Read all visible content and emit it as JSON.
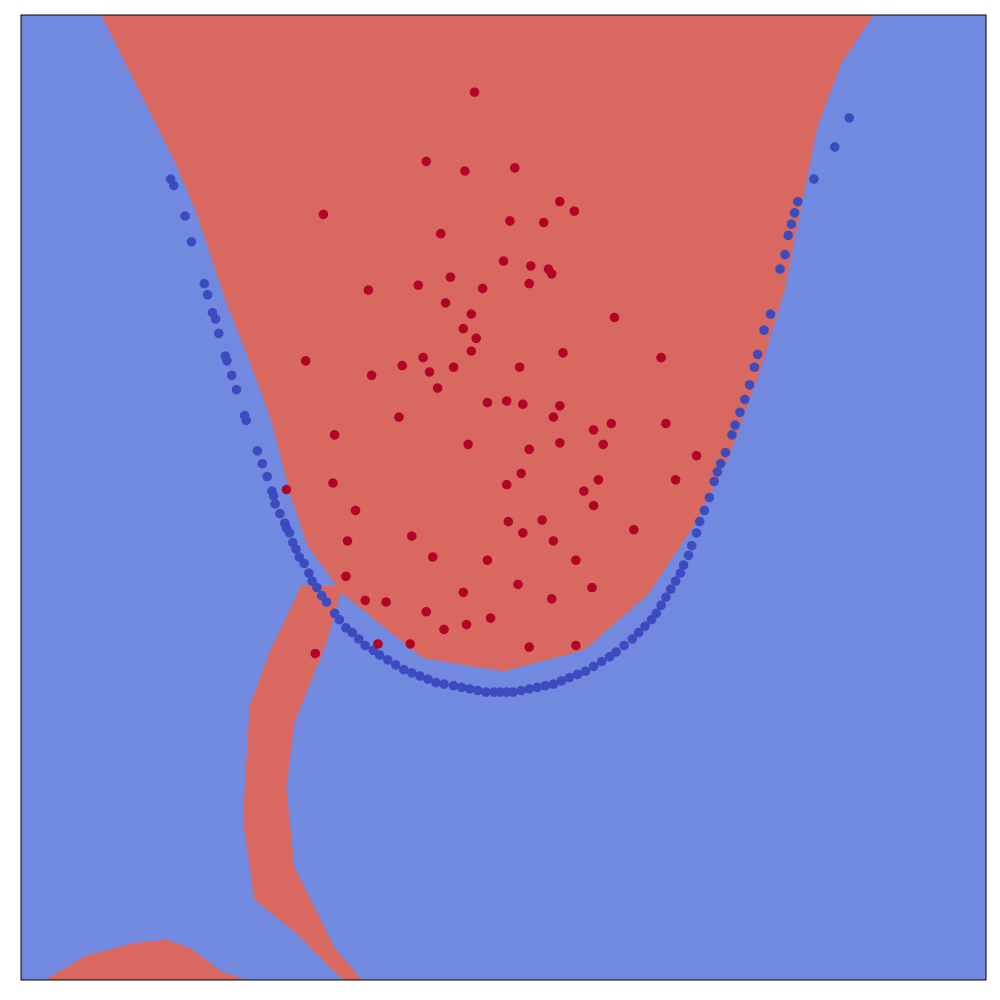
{
  "chart_data": {
    "type": "scatter",
    "title": "",
    "xlabel": "",
    "ylabel": "",
    "xlim": [
      -3.0,
      3.0
    ],
    "ylim": [
      -3.0,
      3.0
    ],
    "grid": false,
    "ticks": false,
    "colors": {
      "region_class_0": "#7289e0",
      "region_class_1": "#d86860",
      "class_0": "#3b4cc0",
      "class_1": "#b40426",
      "frame": "#000000"
    },
    "decision_regions": [
      {
        "class": 1,
        "boundary": [
          [
            -2.5,
            3
          ],
          [
            -2.35,
            2.7
          ],
          [
            -2.2,
            2.4
          ],
          [
            -2.05,
            2.1
          ],
          [
            -1.92,
            1.8
          ],
          [
            -1.82,
            1.5
          ],
          [
            -1.72,
            1.2
          ],
          [
            -1.6,
            0.9
          ],
          [
            -1.45,
            0.5
          ],
          [
            -1.32,
            0.0
          ],
          [
            -1.22,
            -0.3
          ],
          [
            -1.0,
            -0.6
          ],
          [
            -0.5,
            -1.0
          ],
          [
            0.0,
            -1.08
          ],
          [
            0.5,
            -0.95
          ],
          [
            0.9,
            -0.6
          ],
          [
            1.2,
            -0.15
          ],
          [
            1.4,
            0.25
          ],
          [
            1.6,
            0.8
          ],
          [
            1.75,
            1.3
          ],
          [
            1.85,
            1.8
          ],
          [
            1.95,
            2.3
          ],
          [
            2.1,
            2.7
          ],
          [
            2.3,
            3.0
          ]
        ]
      },
      {
        "class": 1,
        "boundary": [
          [
            -1.26,
            -0.55
          ],
          [
            -1.0,
            -0.55
          ],
          [
            -1.1,
            -0.9
          ],
          [
            -1.3,
            -1.4
          ],
          [
            -1.35,
            -1.8
          ],
          [
            -1.3,
            -2.3
          ],
          [
            -1.05,
            -2.8
          ],
          [
            -0.88,
            -3.0
          ],
          [
            -1.0,
            -3.0
          ],
          [
            -1.3,
            -2.7
          ],
          [
            -1.55,
            -2.5
          ],
          [
            -1.62,
            -2.0
          ],
          [
            -1.58,
            -1.3
          ],
          [
            -1.45,
            -0.95
          ],
          [
            -1.33,
            -0.7
          ]
        ]
      },
      {
        "class": 1,
        "boundary": [
          [
            -2.85,
            -3.0
          ],
          [
            -2.6,
            -2.85
          ],
          [
            -2.3,
            -2.77
          ],
          [
            -2.1,
            -2.75
          ],
          [
            -1.95,
            -2.8
          ],
          [
            -1.75,
            -2.95
          ],
          [
            -1.6,
            -3.0
          ]
        ]
      }
    ],
    "series": [
      {
        "class": 0,
        "points": [
          [
            -2.07,
            1.98
          ],
          [
            -2.05,
            1.94
          ],
          [
            -1.98,
            1.75
          ],
          [
            -1.94,
            1.59
          ],
          [
            -1.86,
            1.33
          ],
          [
            -1.84,
            1.26
          ],
          [
            -1.81,
            1.15
          ],
          [
            -1.79,
            1.11
          ],
          [
            -1.77,
            1.02
          ],
          [
            -1.73,
            0.88
          ],
          [
            -1.72,
            0.85
          ],
          [
            -1.69,
            0.76
          ],
          [
            -1.66,
            0.67
          ],
          [
            -1.61,
            0.51
          ],
          [
            -1.6,
            0.48
          ],
          [
            -1.53,
            0.29
          ],
          [
            -1.5,
            0.21
          ],
          [
            -1.47,
            0.13
          ],
          [
            -1.44,
            0.04
          ],
          [
            -1.43,
            0.01
          ],
          [
            -1.42,
            -0.04
          ],
          [
            -1.39,
            -0.1
          ],
          [
            -1.36,
            -0.16
          ],
          [
            -1.35,
            -0.19
          ],
          [
            -1.33,
            -0.22
          ],
          [
            -1.31,
            -0.28
          ],
          [
            -1.29,
            -0.32
          ],
          [
            -1.27,
            -0.37
          ],
          [
            -1.24,
            -0.41
          ],
          [
            -1.21,
            -0.47
          ],
          [
            -1.19,
            -0.52
          ],
          [
            -1.16,
            -0.56
          ],
          [
            -1.13,
            -0.61
          ],
          [
            -1.1,
            -0.65
          ],
          [
            -1.05,
            -0.72
          ],
          [
            -1.02,
            -0.76
          ],
          [
            -0.98,
            -0.81
          ],
          [
            -0.94,
            -0.84
          ],
          [
            -0.9,
            -0.88
          ],
          [
            -0.86,
            -0.92
          ],
          [
            -0.81,
            -0.95
          ],
          [
            -0.77,
            -0.98
          ],
          [
            -0.72,
            -1.01
          ],
          [
            -0.67,
            -1.04
          ],
          [
            -0.62,
            -1.07
          ],
          [
            -0.57,
            -1.09
          ],
          [
            -0.52,
            -1.11
          ],
          [
            -0.47,
            -1.13
          ],
          [
            -0.42,
            -1.15
          ],
          [
            -0.37,
            -1.16
          ],
          [
            -0.31,
            -1.17
          ],
          [
            -0.26,
            -1.18
          ],
          [
            -0.21,
            -1.19
          ],
          [
            -0.16,
            -1.2
          ],
          [
            -0.11,
            -1.21
          ],
          [
            -0.06,
            -1.21
          ],
          [
            -0.02,
            -1.21
          ],
          [
            0.02,
            -1.21
          ],
          [
            0.06,
            -1.21
          ],
          [
            0.11,
            -1.2
          ],
          [
            0.16,
            -1.19
          ],
          [
            0.21,
            -1.18
          ],
          [
            0.26,
            -1.17
          ],
          [
            0.31,
            -1.16
          ],
          [
            0.36,
            -1.14
          ],
          [
            0.41,
            -1.12
          ],
          [
            0.46,
            -1.1
          ],
          [
            0.51,
            -1.08
          ],
          [
            0.56,
            -1.05
          ],
          [
            0.61,
            -1.02
          ],
          [
            0.66,
            -0.99
          ],
          [
            0.7,
            -0.96
          ],
          [
            0.75,
            -0.92
          ],
          [
            0.8,
            -0.88
          ],
          [
            0.84,
            -0.84
          ],
          [
            0.88,
            -0.8
          ],
          [
            0.92,
            -0.76
          ],
          [
            0.95,
            -0.72
          ],
          [
            0.98,
            -0.67
          ],
          [
            1.01,
            -0.62
          ],
          [
            1.04,
            -0.57
          ],
          [
            1.07,
            -0.52
          ],
          [
            1.1,
            -0.47
          ],
          [
            1.12,
            -0.42
          ],
          [
            1.15,
            -0.36
          ],
          [
            1.17,
            -0.3
          ],
          [
            1.2,
            -0.22
          ],
          [
            1.22,
            -0.15
          ],
          [
            1.25,
            -0.08
          ],
          [
            1.28,
            0.0
          ],
          [
            1.31,
            0.1
          ],
          [
            1.33,
            0.16
          ],
          [
            1.35,
            0.21
          ],
          [
            1.38,
            0.28
          ],
          [
            1.42,
            0.39
          ],
          [
            1.44,
            0.45
          ],
          [
            1.47,
            0.53
          ],
          [
            1.5,
            0.61
          ],
          [
            1.53,
            0.7
          ],
          [
            1.56,
            0.81
          ],
          [
            1.58,
            0.89
          ],
          [
            1.62,
            1.04
          ],
          [
            1.66,
            1.14
          ],
          [
            1.72,
            1.42
          ],
          [
            1.75,
            1.51
          ],
          [
            1.77,
            1.63
          ],
          [
            1.79,
            1.7
          ],
          [
            1.81,
            1.77
          ],
          [
            1.83,
            1.84
          ],
          [
            1.93,
            1.98
          ],
          [
            2.06,
            2.18
          ],
          [
            2.15,
            2.36
          ]
        ]
      },
      {
        "class": 1,
        "points": [
          [
            -0.18,
            2.52
          ],
          [
            -0.48,
            2.09
          ],
          [
            0.07,
            2.05
          ],
          [
            -0.24,
            2.03
          ],
          [
            0.35,
            1.84
          ],
          [
            0.44,
            1.78
          ],
          [
            0.25,
            1.71
          ],
          [
            -0.39,
            1.64
          ],
          [
            0.0,
            1.47
          ],
          [
            0.17,
            1.44
          ],
          [
            0.28,
            1.42
          ],
          [
            0.3,
            1.39
          ],
          [
            -0.33,
            1.37
          ],
          [
            0.16,
            1.33
          ],
          [
            -0.53,
            1.32
          ],
          [
            -0.13,
            1.3
          ],
          [
            -0.36,
            1.21
          ],
          [
            -0.2,
            1.14
          ],
          [
            0.69,
            1.12
          ],
          [
            -0.25,
            1.05
          ],
          [
            -0.17,
            0.99
          ],
          [
            -0.2,
            0.91
          ],
          [
            -0.5,
            0.87
          ],
          [
            0.37,
            0.9
          ],
          [
            0.1,
            0.81
          ],
          [
            -0.31,
            0.81
          ],
          [
            -0.46,
            0.78
          ],
          [
            0.02,
            0.6
          ],
          [
            -0.1,
            0.59
          ],
          [
            -0.41,
            0.68
          ],
          [
            0.12,
            0.58
          ],
          [
            0.35,
            0.57
          ],
          [
            0.31,
            0.5
          ],
          [
            0.67,
            0.46
          ],
          [
            0.56,
            0.42
          ],
          [
            0.35,
            0.34
          ],
          [
            0.16,
            0.3
          ],
          [
            -0.65,
            0.5
          ],
          [
            0.11,
            0.15
          ],
          [
            0.59,
            0.11
          ],
          [
            0.02,
            0.08
          ],
          [
            0.5,
            0.04
          ],
          [
            0.56,
            -0.05
          ],
          [
            0.24,
            -0.14
          ],
          [
            0.03,
            -0.15
          ],
          [
            0.12,
            -0.22
          ],
          [
            0.31,
            -0.27
          ],
          [
            -0.44,
            -0.37
          ],
          [
            -0.1,
            -0.39
          ],
          [
            0.45,
            -0.39
          ],
          [
            -0.25,
            -0.59
          ],
          [
            0.09,
            -0.54
          ],
          [
            0.55,
            -0.56
          ],
          [
            -0.23,
            -0.79
          ],
          [
            0.3,
            -0.63
          ],
          [
            0.16,
            -0.93
          ],
          [
            -0.48,
            -0.71
          ],
          [
            -0.58,
            -0.91
          ],
          [
            -0.37,
            -0.82
          ],
          [
            -0.73,
            -0.65
          ],
          [
            -0.86,
            -0.64
          ],
          [
            -0.78,
            -0.91
          ],
          [
            -0.92,
            -0.08
          ],
          [
            -0.97,
            -0.27
          ],
          [
            -0.98,
            -0.49
          ],
          [
            -0.57,
            -0.24
          ],
          [
            0.98,
            0.87
          ],
          [
            1.07,
            0.11
          ],
          [
            0.81,
            -0.2
          ],
          [
            1.01,
            0.46
          ],
          [
            -1.05,
            0.39
          ],
          [
            -1.06,
            0.09
          ],
          [
            -1.23,
            0.85
          ],
          [
            -1.35,
            0.05
          ],
          [
            -0.82,
            0.76
          ],
          [
            0.45,
            -0.92
          ],
          [
            0.62,
            0.33
          ],
          [
            1.2,
            0.26
          ],
          [
            -0.08,
            -0.75
          ],
          [
            -1.17,
            -0.97
          ],
          [
            0.04,
            1.72
          ],
          [
            -0.22,
            0.33
          ],
          [
            -0.63,
            0.82
          ],
          [
            -0.84,
            1.29
          ],
          [
            -1.12,
            1.76
          ]
        ]
      }
    ]
  }
}
